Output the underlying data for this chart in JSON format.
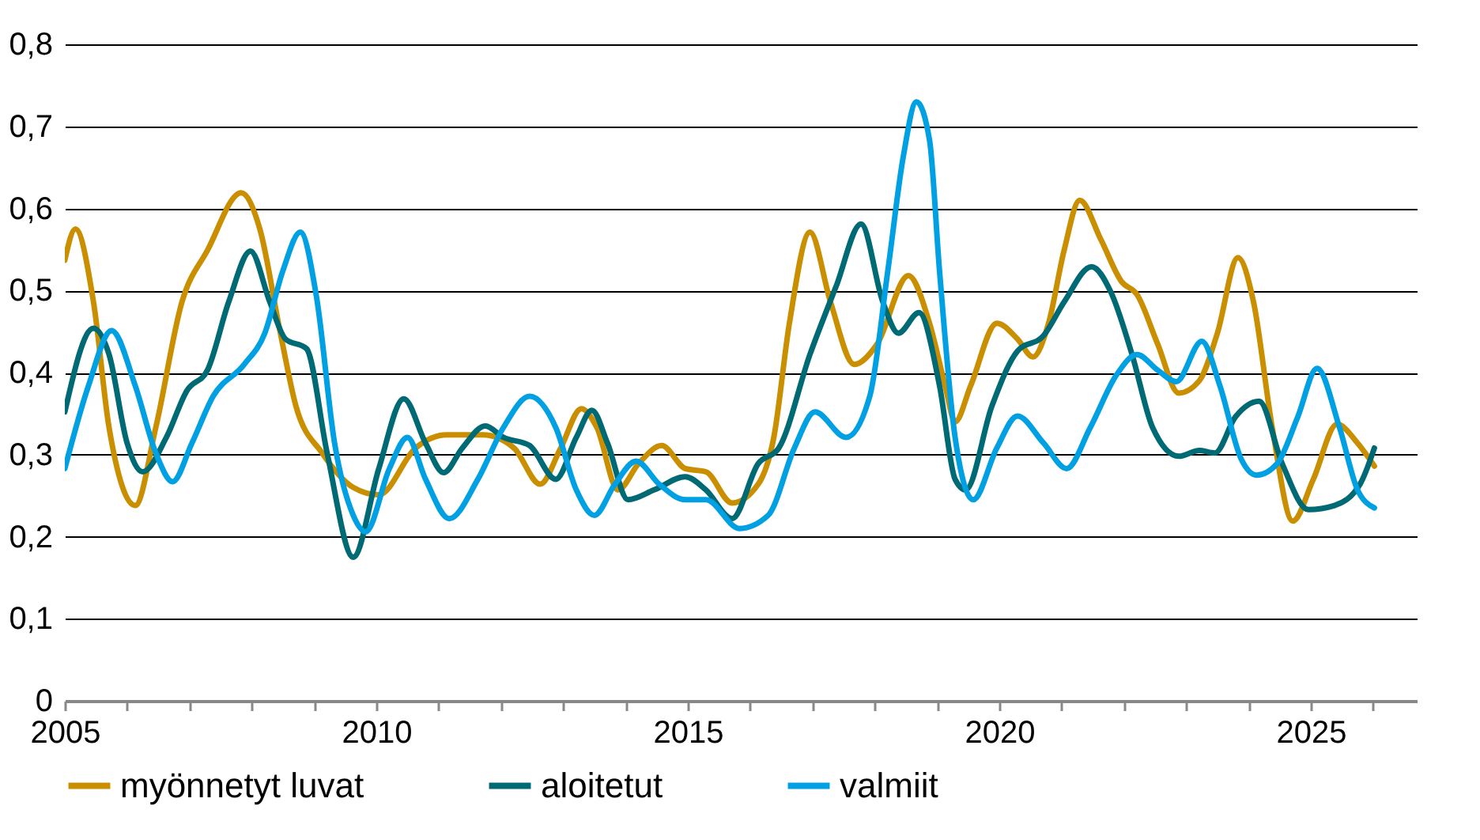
{
  "chart_data": {
    "type": "line",
    "legend": "bottom",
    "grid": "y",
    "marker": "none",
    "line_style": "solid",
    "xlim": [
      2005,
      2026.7
    ],
    "xticks": [
      2005,
      {
        "value": 2006,
        "label": null
      },
      {
        "value": 2007,
        "label": null
      },
      {
        "value": 2008,
        "label": null
      },
      {
        "value": 2009,
        "label": null
      },
      2010,
      {
        "value": 2011,
        "label": null
      },
      {
        "value": 2012,
        "label": null
      },
      {
        "value": 2013,
        "label": null
      },
      {
        "value": 2014,
        "label": null
      },
      2015,
      {
        "value": 2016,
        "label": null
      },
      {
        "value": 2017,
        "label": null
      },
      {
        "value": 2018,
        "label": null
      },
      {
        "value": 2019,
        "label": null
      },
      2020,
      {
        "value": 2021,
        "label": null
      },
      {
        "value": 2022,
        "label": null
      },
      {
        "value": 2023,
        "label": null
      },
      {
        "value": 2024,
        "label": null
      },
      2025,
      {
        "value": 2026,
        "label": null
      }
    ],
    "ylim": [
      0,
      0.8
    ],
    "yticks": [
      0,
      {
        "value": 0.1,
        "label": "0,1"
      },
      {
        "value": 0.2,
        "label": "0,2"
      },
      {
        "value": 0.3,
        "label": "0,3"
      },
      {
        "value": 0.4,
        "label": "0,4"
      },
      {
        "value": 0.5,
        "label": "0,5"
      },
      {
        "value": 0.6,
        "label": "0,6"
      },
      {
        "value": 0.7,
        "label": "0,7"
      },
      {
        "value": 0.8,
        "label": "0,8"
      }
    ],
    "series": [
      {
        "name": "myönnetyt luvat",
        "color": "#c98f00",
        "x": [
          2005.0,
          2005.17,
          2005.46,
          2005.71,
          2006.13,
          2006.46,
          2006.88,
          2007.29,
          2007.83,
          2008.13,
          2008.46,
          2008.71,
          2009.13,
          2009.63,
          2010.04,
          2010.63,
          2011.13,
          2011.71,
          2012.21,
          2012.63,
          2012.96,
          2013.29,
          2013.54,
          2013.88,
          2014.21,
          2014.58,
          2014.96,
          2015.29,
          2015.71,
          2016.13,
          2016.38,
          2016.63,
          2016.96,
          2017.29,
          2017.67,
          2018.04,
          2018.54,
          2018.88,
          2019.13,
          2019.29,
          2019.54,
          2019.96,
          2020.29,
          2020.54,
          2020.79,
          2021.04,
          2021.29,
          2021.63,
          2021.96,
          2022.21,
          2022.54,
          2022.88,
          2023.21,
          2023.5,
          2023.83,
          2024.08,
          2024.38,
          2024.71,
          2025.04,
          2025.42,
          2025.75,
          2026.02
        ],
        "values": [
          0.537,
          0.575,
          0.486,
          0.333,
          0.238,
          0.333,
          0.486,
          0.549,
          0.619,
          0.575,
          0.448,
          0.359,
          0.302,
          0.26,
          0.251,
          0.308,
          0.324,
          0.324,
          0.308,
          0.264,
          0.308,
          0.356,
          0.333,
          0.257,
          0.289,
          0.311,
          0.283,
          0.279,
          0.241,
          0.264,
          0.321,
          0.46,
          0.571,
          0.486,
          0.41,
          0.435,
          0.518,
          0.46,
          0.384,
          0.34,
          0.384,
          0.46,
          0.441,
          0.419,
          0.46,
          0.549,
          0.61,
          0.562,
          0.511,
          0.495,
          0.435,
          0.375,
          0.39,
          0.448,
          0.54,
          0.486,
          0.333,
          0.219,
          0.27,
          0.337,
          0.314,
          0.286
        ]
      },
      {
        "name": "aloitetut",
        "color": "#006a74",
        "x": [
          2005.0,
          2005.46,
          2005.71,
          2006.0,
          2006.25,
          2006.63,
          2006.96,
          2007.29,
          2007.63,
          2007.98,
          2008.29,
          2008.54,
          2008.88,
          2009.21,
          2009.63,
          2010.04,
          2010.44,
          2010.79,
          2011.08,
          2011.38,
          2011.75,
          2012.04,
          2012.46,
          2012.88,
          2013.21,
          2013.46,
          2013.71,
          2014.04,
          2014.46,
          2014.96,
          2015.29,
          2015.71,
          2016.13,
          2016.46,
          2016.96,
          2017.38,
          2017.78,
          2018.13,
          2018.38,
          2018.71,
          2019.04,
          2019.29,
          2019.46,
          2019.88,
          2020.29,
          2020.71,
          2021.04,
          2021.48,
          2021.79,
          2022.13,
          2022.46,
          2022.88,
          2023.21,
          2023.46,
          2023.79,
          2024.17,
          2024.54,
          2024.96,
          2025.38,
          2025.79,
          2026.02
        ],
        "values": [
          0.352,
          0.454,
          0.422,
          0.314,
          0.279,
          0.321,
          0.378,
          0.403,
          0.486,
          0.548,
          0.486,
          0.441,
          0.429,
          0.302,
          0.175,
          0.283,
          0.368,
          0.314,
          0.278,
          0.308,
          0.335,
          0.321,
          0.311,
          0.27,
          0.321,
          0.354,
          0.314,
          0.245,
          0.257,
          0.273,
          0.257,
          0.222,
          0.289,
          0.308,
          0.422,
          0.505,
          0.581,
          0.486,
          0.448,
          0.473,
          0.384,
          0.27,
          0.257,
          0.359,
          0.426,
          0.445,
          0.486,
          0.529,
          0.498,
          0.422,
          0.333,
          0.298,
          0.305,
          0.302,
          0.346,
          0.365,
          0.289,
          0.233,
          0.238,
          0.264,
          0.308
        ]
      },
      {
        "name": "valmiit",
        "color": "#00a0e3",
        "x": [
          2005.0,
          2005.38,
          2005.75,
          2006.13,
          2006.46,
          2006.73,
          2007.04,
          2007.38,
          2007.88,
          2008.21,
          2008.5,
          2008.78,
          2009.04,
          2009.33,
          2009.63,
          2009.83,
          2010.21,
          2010.5,
          2010.79,
          2011.17,
          2011.63,
          2012.04,
          2012.46,
          2012.88,
          2013.21,
          2013.5,
          2013.83,
          2014.17,
          2014.54,
          2014.96,
          2015.29,
          2015.83,
          2016.29,
          2016.71,
          2017.04,
          2017.54,
          2017.92,
          2018.21,
          2018.46,
          2018.67,
          2018.88,
          2019.04,
          2019.29,
          2019.58,
          2019.96,
          2020.29,
          2020.71,
          2021.08,
          2021.46,
          2021.88,
          2022.21,
          2022.54,
          2022.84,
          2023.25,
          2023.54,
          2023.88,
          2024.13,
          2024.46,
          2024.79,
          2025.1,
          2025.46,
          2025.75,
          2026.02
        ],
        "values": [
          0.283,
          0.384,
          0.451,
          0.384,
          0.302,
          0.267,
          0.314,
          0.371,
          0.41,
          0.448,
          0.524,
          0.571,
          0.492,
          0.314,
          0.226,
          0.206,
          0.283,
          0.321,
          0.27,
          0.222,
          0.27,
          0.333,
          0.371,
          0.333,
          0.257,
          0.226,
          0.264,
          0.292,
          0.264,
          0.245,
          0.245,
          0.21,
          0.226,
          0.308,
          0.352,
          0.321,
          0.371,
          0.524,
          0.664,
          0.73,
          0.683,
          0.524,
          0.321,
          0.245,
          0.308,
          0.347,
          0.314,
          0.283,
          0.333,
          0.397,
          0.422,
          0.403,
          0.389,
          0.438,
          0.384,
          0.295,
          0.275,
          0.289,
          0.346,
          0.405,
          0.333,
          0.257,
          0.235
        ]
      }
    ]
  }
}
